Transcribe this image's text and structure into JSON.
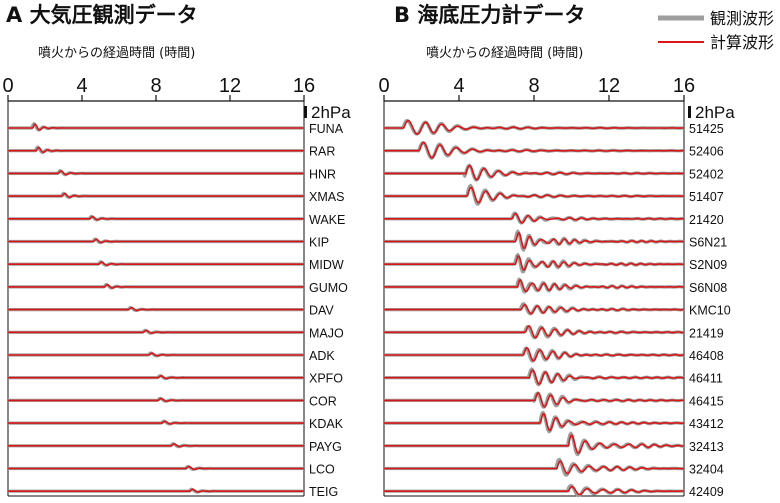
{
  "legend": {
    "observed_label": "観測波形",
    "computed_label": "計算波形",
    "observed_color": "#9e9e9e",
    "computed_color": "#d81818"
  },
  "chart_data": [
    {
      "type": "line",
      "panel_label": "A",
      "title": "大気圧観測データ",
      "xlabel": "噴火からの経過時間 (時間)",
      "xlim": [
        0,
        16
      ],
      "xticks": [
        0,
        4,
        8,
        12,
        16
      ],
      "scale_bar": "2hPa",
      "grid": false,
      "series": [
        {
          "name": "観測波形"
        },
        {
          "name": "計算波形"
        }
      ],
      "stations": [
        {
          "name": "FUNA",
          "arrival_h": 1.3,
          "amp": 6,
          "period": 0.5
        },
        {
          "name": "RAR",
          "arrival_h": 1.5,
          "amp": 5,
          "period": 0.5
        },
        {
          "name": "HNR",
          "arrival_h": 2.7,
          "amp": 4,
          "period": 0.55
        },
        {
          "name": "XMAS",
          "arrival_h": 2.9,
          "amp": 4,
          "period": 0.55
        },
        {
          "name": "WAKE",
          "arrival_h": 4.4,
          "amp": 3.5,
          "period": 0.55
        },
        {
          "name": "KIP",
          "arrival_h": 4.6,
          "amp": 3.5,
          "period": 0.55
        },
        {
          "name": "MIDW",
          "arrival_h": 4.9,
          "amp": 3.5,
          "period": 0.55
        },
        {
          "name": "GUMO",
          "arrival_h": 5.2,
          "amp": 3.5,
          "period": 0.55
        },
        {
          "name": "DAV",
          "arrival_h": 6.5,
          "amp": 3,
          "period": 0.6
        },
        {
          "name": "MAJO",
          "arrival_h": 7.3,
          "amp": 3,
          "period": 0.6
        },
        {
          "name": "ADK",
          "arrival_h": 7.6,
          "amp": 3,
          "period": 0.6
        },
        {
          "name": "XPFO",
          "arrival_h": 8.1,
          "amp": 3,
          "period": 0.6
        },
        {
          "name": "COR",
          "arrival_h": 8.1,
          "amp": 3,
          "period": 0.6
        },
        {
          "name": "KDAK",
          "arrival_h": 8.3,
          "amp": 3,
          "period": 0.6
        },
        {
          "name": "PAYG",
          "arrival_h": 8.8,
          "amp": 3,
          "period": 0.6
        },
        {
          "name": "LCO",
          "arrival_h": 9.6,
          "amp": 3,
          "period": 0.6
        },
        {
          "name": "TEIG",
          "arrival_h": 9.8,
          "amp": 3,
          "period": 0.6
        }
      ]
    },
    {
      "type": "line",
      "panel_label": "B",
      "title": "海底圧力計データ",
      "xlabel": "噴火からの経過時間 (時間)",
      "xlim": [
        0,
        16
      ],
      "xticks": [
        0,
        4,
        8,
        12,
        16
      ],
      "scale_bar": "2hPa",
      "grid": false,
      "series": [
        {
          "name": "観測波形"
        },
        {
          "name": "計算波形"
        }
      ],
      "stations": [
        {
          "name": "51425",
          "arrival_h": 1.0,
          "amp": 12,
          "period": 0.9
        },
        {
          "name": "52406",
          "arrival_h": 1.8,
          "amp": 11,
          "period": 0.9
        },
        {
          "name": "52402",
          "arrival_h": 4.3,
          "amp": 9,
          "period": 0.8
        },
        {
          "name": "51407",
          "arrival_h": 4.4,
          "amp": 10,
          "period": 0.8
        },
        {
          "name": "21420",
          "arrival_h": 6.8,
          "amp": 6,
          "period": 0.7
        },
        {
          "name": "S6N21",
          "arrival_h": 7.0,
          "amp": 10,
          "period": 0.6
        },
        {
          "name": "S2N09",
          "arrival_h": 7.0,
          "amp": 10,
          "period": 0.6
        },
        {
          "name": "S6N08",
          "arrival_h": 7.1,
          "amp": 10,
          "period": 0.6
        },
        {
          "name": "KMC10",
          "arrival_h": 7.3,
          "amp": 8,
          "period": 0.65
        },
        {
          "name": "21419",
          "arrival_h": 7.5,
          "amp": 9,
          "period": 0.7
        },
        {
          "name": "46408",
          "arrival_h": 7.4,
          "amp": 9,
          "period": 0.7
        },
        {
          "name": "46411",
          "arrival_h": 7.7,
          "amp": 9,
          "period": 0.7
        },
        {
          "name": "46415",
          "arrival_h": 8.0,
          "amp": 8,
          "period": 0.7
        },
        {
          "name": "43412",
          "arrival_h": 8.3,
          "amp": 9,
          "period": 0.7
        },
        {
          "name": "32413",
          "arrival_h": 9.8,
          "amp": 11,
          "period": 0.75
        },
        {
          "name": "32404",
          "arrival_h": 9.2,
          "amp": 9,
          "period": 0.75
        },
        {
          "name": "42409",
          "arrival_h": 9.8,
          "amp": 6,
          "period": 0.8
        }
      ]
    }
  ]
}
